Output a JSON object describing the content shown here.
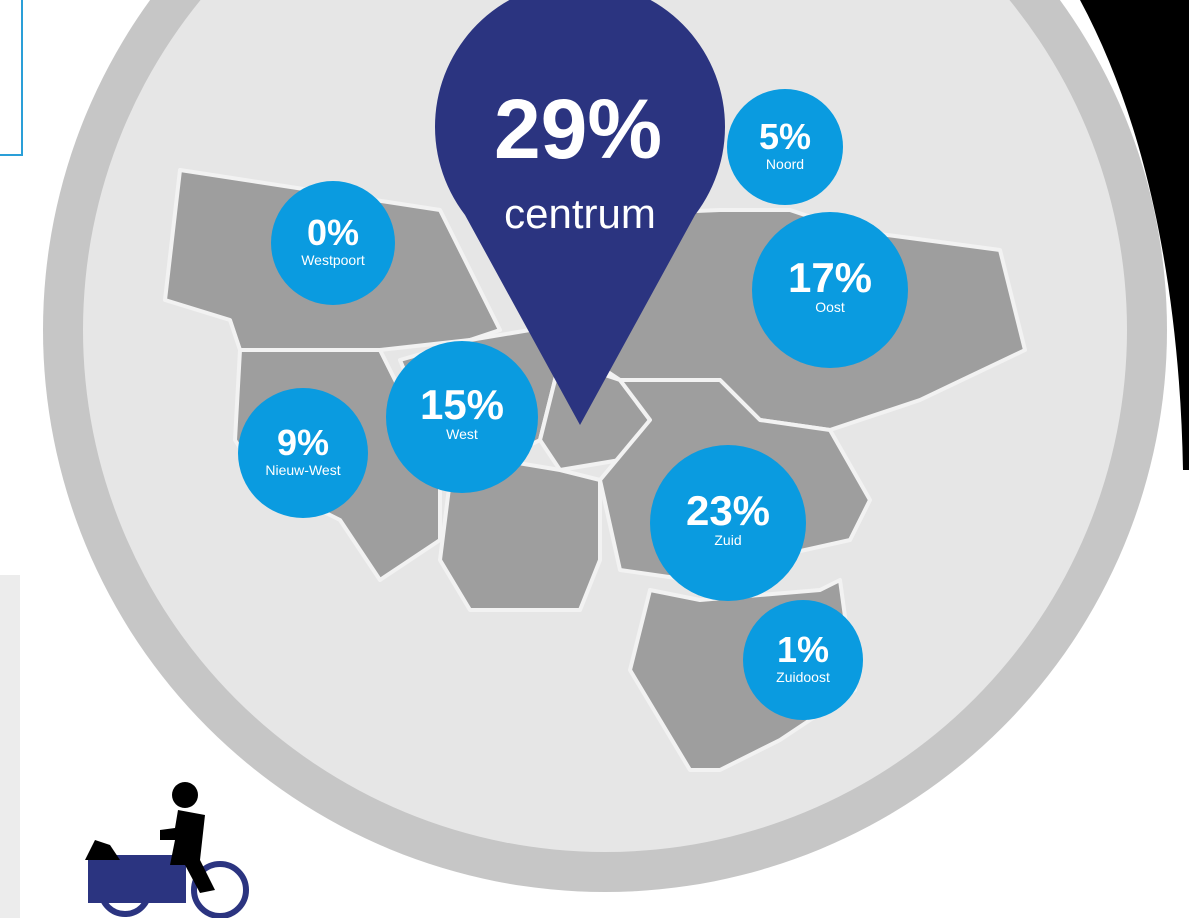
{
  "pin": {
    "value": "29%",
    "name": "centrum"
  },
  "districts": [
    {
      "value": "0%",
      "name": "Westpoort"
    },
    {
      "value": "5%",
      "name": "Noord"
    },
    {
      "value": "17%",
      "name": "Oost"
    },
    {
      "value": "15%",
      "name": "West"
    },
    {
      "value": "9%",
      "name": "Nieuw-West"
    },
    {
      "value": "23%",
      "name": "Zuid"
    },
    {
      "value": "1%",
      "name": "Zuidoost"
    }
  ]
}
